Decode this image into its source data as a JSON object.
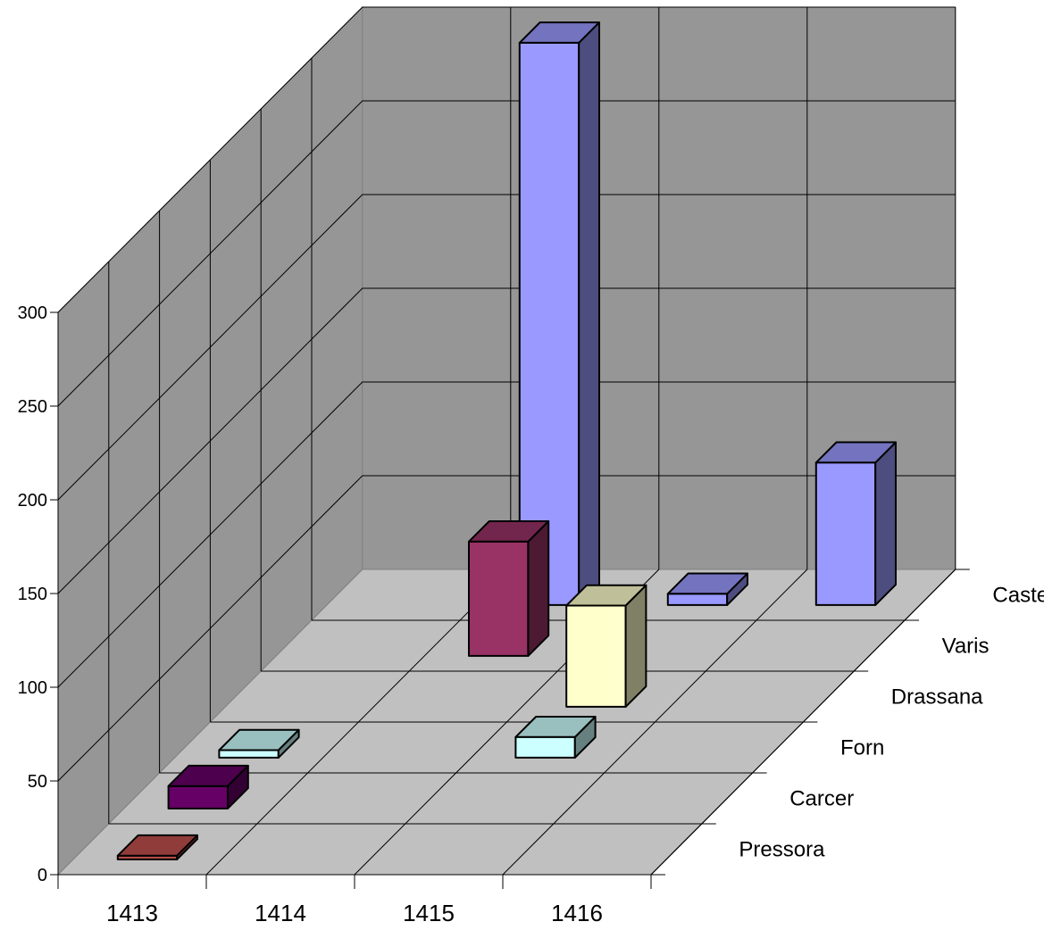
{
  "chart_data": {
    "type": "bar",
    "subtype": "3d-column",
    "title": "",
    "xlabel": "",
    "ylabel": "",
    "categories": [
      "1413",
      "1414",
      "1415",
      "1416"
    ],
    "yticks": [
      "0",
      "50",
      "100",
      "150",
      "200",
      "250",
      "300"
    ],
    "ylim": [
      0,
      300
    ],
    "grid": true,
    "legend": "none",
    "series": [
      {
        "name": "Pressora",
        "color": "#c0504d",
        "values": [
          2,
          0,
          0,
          0
        ]
      },
      {
        "name": "Carcer",
        "color": "#660066",
        "values": [
          12,
          0,
          0,
          0
        ]
      },
      {
        "name": "Forn",
        "color": "#ccffff",
        "values": [
          4,
          0,
          11,
          0
        ]
      },
      {
        "name": "Drassana",
        "color": "#ffffcc",
        "values": [
          0,
          0,
          54,
          0
        ]
      },
      {
        "name": "Varis",
        "color": "#993366",
        "values": [
          0,
          61,
          0,
          0
        ]
      },
      {
        "name": "Castell",
        "color": "#9999ff",
        "values": [
          0,
          300,
          6,
          76
        ]
      }
    ]
  },
  "colors": {
    "back_wall": "#969696",
    "floor": "#c0c0c0",
    "gridline": "#000000"
  }
}
